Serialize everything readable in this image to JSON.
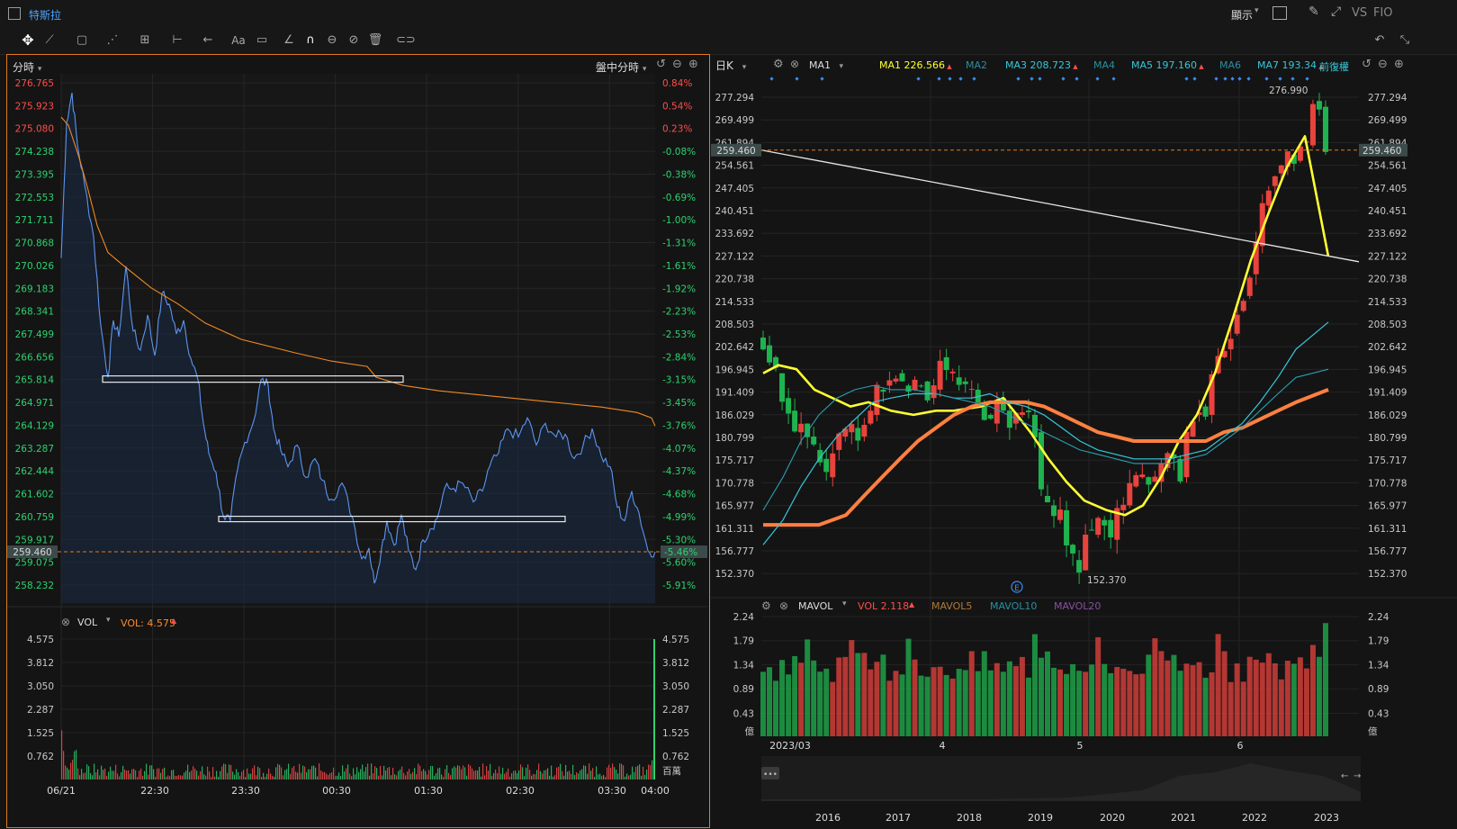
{
  "app": {
    "title": "特斯拉",
    "menu_display": "顯示",
    "menu_vs": "VS",
    "menu_fio": "FIO"
  },
  "left_panel": {
    "period_label": "分時",
    "session_label": "盤中分時",
    "vol_label": "VOL",
    "vol_value_text": "VOL: 4.575",
    "vol_unit": "百萬",
    "last_price_badge": "259.460",
    "price_ticks": [
      "276.765",
      "275.923",
      "275.080",
      "274.238",
      "273.395",
      "272.553",
      "271.711",
      "270.868",
      "270.026",
      "269.183",
      "268.341",
      "267.499",
      "266.656",
      "265.814",
      "264.971",
      "264.129",
      "263.287",
      "262.444",
      "261.602",
      "260.759",
      "259.917",
      "259.460",
      "259.075",
      "258.232"
    ],
    "pct_ticks": [
      "0.84%",
      "0.54%",
      "0.23%",
      "-0.08%",
      "-0.38%",
      "-0.69%",
      "-1.00%",
      "-1.31%",
      "-1.61%",
      "-1.92%",
      "-2.23%",
      "-2.53%",
      "-2.84%",
      "-3.15%",
      "-3.45%",
      "-3.76%",
      "-4.07%",
      "-4.37%",
      "-4.68%",
      "-4.99%",
      "-5.30%",
      "-5.46%",
      "-5.60%",
      "-5.91%"
    ],
    "vol_ticks": [
      "4.575",
      "3.812",
      "3.050",
      "2.287",
      "1.525",
      "0.762"
    ],
    "time_ticks": [
      "06/21",
      "22:30",
      "23:30",
      "00:30",
      "01:30",
      "02:30",
      "03:30",
      "04:00"
    ]
  },
  "right_panel": {
    "period_label": "日K",
    "ma_selector": "MA1",
    "ma_legend": [
      {
        "name": "MA1",
        "value": "226.566",
        "color": "#ffff33"
      },
      {
        "name": "MA2",
        "value": "",
        "color": "#2a8fa0"
      },
      {
        "name": "MA3",
        "value": "208.723",
        "color": "#36c7d9"
      },
      {
        "name": "MA4",
        "value": "",
        "color": "#2a8fa0"
      },
      {
        "name": "MA5",
        "value": "197.160",
        "color": "#36c7d9"
      },
      {
        "name": "MA6",
        "value": "",
        "color": "#2a8fa0"
      },
      {
        "name": "MA7",
        "value": "193.34",
        "color": "#36c7d9"
      }
    ],
    "adjust_label": "前復權",
    "last_price_badge": "259.460",
    "high_label": "276.990",
    "low_label": "152.370",
    "earnings_marker": "E",
    "price_ticks": [
      "277.294",
      "269.499",
      "261.894",
      "254.561",
      "247.405",
      "240.451",
      "233.692",
      "227.122",
      "220.738",
      "214.533",
      "208.503",
      "202.642",
      "196.945",
      "191.409",
      "186.029",
      "180.799",
      "175.717",
      "170.778",
      "165.977",
      "161.311",
      "156.777",
      "152.370"
    ],
    "vol_indicator": "MAVOL",
    "vol_value_text": "VOL 2.118",
    "mavol5": "MAVOL5",
    "mavol10": "MAVOL10",
    "mavol20": "MAVOL20",
    "vol_ticks": [
      "2.24",
      "1.79",
      "1.34",
      "0.89",
      "0.43"
    ],
    "vol_unit": "億",
    "date_ticks": [
      "2023/03",
      "4",
      "5",
      "6"
    ],
    "overview_years": [
      "2016",
      "2017",
      "2018",
      "2019",
      "2020",
      "2021",
      "2022",
      "2023"
    ],
    "overview_handle": "•••"
  },
  "chart_data": [
    {
      "type": "line",
      "title": "特斯拉 分時",
      "x": [
        "06/21",
        "22:30",
        "23:30",
        "00:30",
        "01:30",
        "02:30",
        "03:30",
        "04:00"
      ],
      "series": [
        {
          "name": "price",
          "values": [
            270.3,
            275.5,
            265.9,
            261.0,
            259.2,
            263.6,
            263.5,
            259.46
          ]
        },
        {
          "name": "avg",
          "values": [
            275.5,
            270.0,
            266.6,
            265.8,
            265.2,
            264.9,
            264.7,
            264.5
          ]
        }
      ],
      "ylim": [
        258.232,
        276.765
      ],
      "volume_ylim": [
        0,
        4.575
      ]
    },
    {
      "type": "bar",
      "title": "特斯拉 日K",
      "categories": [
        "2023/03",
        "4",
        "5",
        "6"
      ],
      "ylim": [
        152.37,
        277.294
      ],
      "series": [
        {
          "name": "MA1",
          "value": 226.566
        },
        {
          "name": "MA3",
          "value": 208.723
        },
        {
          "name": "MA5",
          "value": 197.16
        },
        {
          "name": "MA7",
          "value": 193.34
        }
      ],
      "high": 276.99,
      "low": 152.37,
      "last": 259.46,
      "volume_ylim": [
        0,
        2.24
      ],
      "last_volume": 2.118
    }
  ]
}
